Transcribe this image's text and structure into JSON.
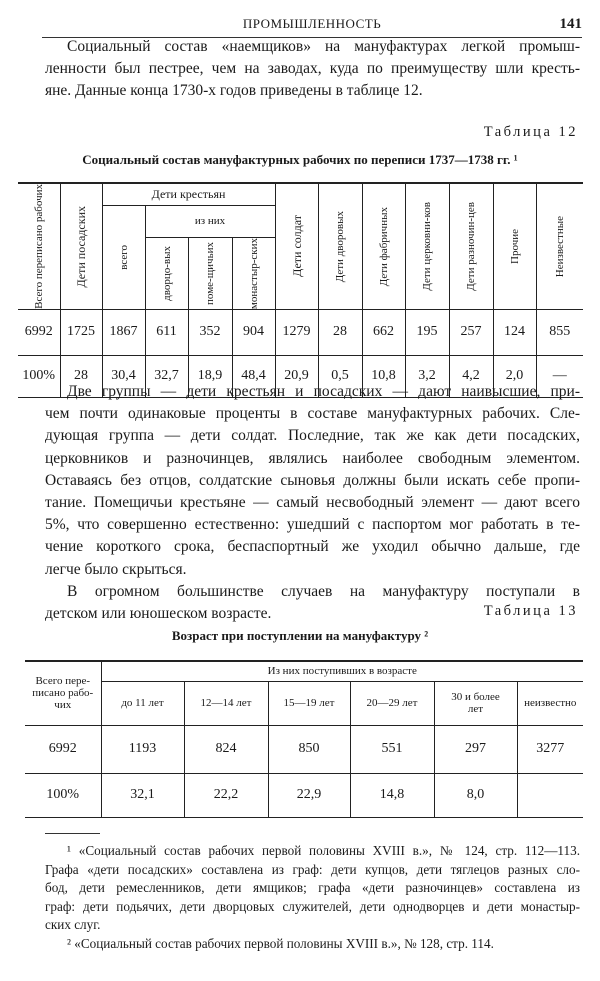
{
  "header": {
    "running_title": "ПРОМЫШЛЕННОСТЬ",
    "page_number": "141"
  },
  "paragraph1": [
    "Социальный состав «наемщиков» на мануфактурах легкой промыш-",
    "ленности был пестрее, чем на заводах, куда по преимуществу шли кресть-",
    "яне. Данные конца 1730-х годов приведены в таблице 12."
  ],
  "table12": {
    "label": "Таблица 12",
    "title": "Социальный состав мануфактурных рабочих по переписи 1737—1738 гг. ¹",
    "headers": {
      "total": "Всего переписано рабочих",
      "posad": "Дети посадских",
      "peasants": "Дети крестьян",
      "of_them": "из них",
      "vsego": "всего",
      "dvortsovykh": "дворцо-вых",
      "pomeshchichyikh": "поме-щичьих",
      "monastyrskikh": "монастыр-ских",
      "soldat": "Дети солдат",
      "dvorovykh": "Дети дворовых",
      "fabrichnykh": "Дети фабричных",
      "tserkovnikov": "Дети церковни-ков",
      "raznochintsev": "Дети разночин-цев",
      "prochie": "Прочие",
      "neizvestnye": "Неизвестные"
    },
    "rows": [
      [
        "6992",
        "1725",
        "1867",
        "611",
        "352",
        "904",
        "1279",
        "28",
        "662",
        "195",
        "257",
        "124",
        "855"
      ],
      [
        "100%",
        "28",
        "30,4",
        "32,7",
        "18,9",
        "48,4",
        "20,9",
        "0,5",
        "10,8",
        "3,2",
        "4,2",
        "2,0",
        "—"
      ]
    ]
  },
  "paragraph2": [
    "Две группы — дети крестьян и посадских — дают наивысшие, при-",
    "чем почти одинаковые проценты в составе мануфактурных рабочих. Сле-",
    "дующая группа — дети солдат. Последние, так же как дети посадских,",
    "церковников и разночинцев, являлись наиболее свободным элементом.",
    "Оставаясь без отцов, солдатские сыновья должны были искать себе пропи-",
    "тание. Помещичьи крестьяне — самый несвободный элемент — дают всего",
    "5%, что совершенно естественно: ушедший с паспортом мог работать в те-",
    "чение короткого срока, беспаспортный же уходил обычно дальше, где",
    "легче было скрыться."
  ],
  "paragraph3": [
    "В огромном большинстве случаев на мануфактуру поступали в",
    "детском или юношеском возрасте."
  ],
  "table13": {
    "label": "Таблица 13",
    "title": "Возраст при поступлении на мануфактуру ²",
    "headers": {
      "total": "Всего пере-писано рабо-чих",
      "group": "Из них поступивших в возрасте",
      "cols": [
        "до 11 лет",
        "12—14 лет",
        "15—19 лет",
        "20—29 лет",
        "30 и более лет",
        "неизвестно"
      ]
    },
    "rows": [
      [
        "6992",
        "1193",
        "824",
        "850",
        "551",
        "297",
        "3277"
      ],
      [
        "100%",
        "32,1",
        "22,2",
        "22,9",
        "14,8",
        "8,0",
        ""
      ]
    ]
  },
  "footnotes": [
    "¹ «Социальный состав рабочих первой половины XVIII в.», № 124, стр. 112—113.",
    "Графа «дети посадских» составлена из граф: дети купцов, дети тяглецов разных сло-",
    "бод, дети ремесленников, дети ямщиков; графа «дети разночинцев» составлена из",
    "граф: дети подьячих, дети дворцовых служителей, дети однодворцев и дети монастыр-",
    "ских слуг.",
    "² «Социальный состав рабочих первой половины XVIII в.», № 128, стр. 114."
  ]
}
